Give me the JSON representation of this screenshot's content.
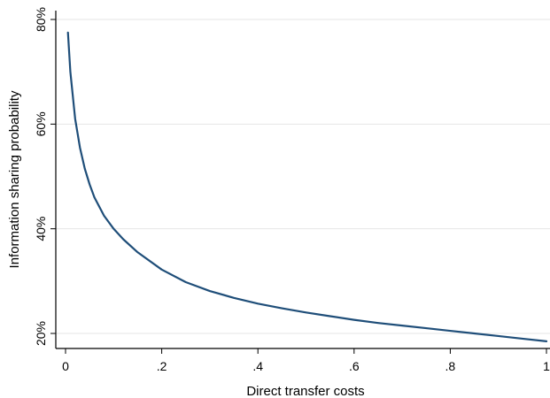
{
  "chart_data": {
    "type": "line",
    "title": "",
    "xlabel": "Direct transfer costs",
    "ylabel": "Information sharing probability",
    "xlim": [
      0,
      1
    ],
    "ylim": [
      0.17,
      0.81
    ],
    "grid": true,
    "x_ticks": [
      {
        "value": 0,
        "label": "0"
      },
      {
        "value": 0.2,
        "label": ".2"
      },
      {
        "value": 0.4,
        "label": ".4"
      },
      {
        "value": 0.6,
        "label": ".6"
      },
      {
        "value": 0.8,
        "label": ".8"
      },
      {
        "value": 1,
        "label": "1"
      }
    ],
    "y_ticks": [
      {
        "value": 0.2,
        "label": "20%"
      },
      {
        "value": 0.4,
        "label": "40%"
      },
      {
        "value": 0.6,
        "label": "60%"
      },
      {
        "value": 0.8,
        "label": "80%"
      }
    ],
    "series": [
      {
        "color": "#1f4e79",
        "x": [
          0.005,
          0.01,
          0.02,
          0.03,
          0.04,
          0.05,
          0.06,
          0.08,
          0.1,
          0.12,
          0.15,
          0.2,
          0.25,
          0.3,
          0.35,
          0.4,
          0.45,
          0.5,
          0.55,
          0.6,
          0.65,
          0.7,
          0.75,
          0.8,
          0.85,
          0.9,
          0.95,
          1.0
        ],
        "y": [
          0.775,
          0.7,
          0.61,
          0.555,
          0.515,
          0.485,
          0.46,
          0.425,
          0.4,
          0.38,
          0.355,
          0.322,
          0.298,
          0.281,
          0.268,
          0.257,
          0.248,
          0.24,
          0.233,
          0.226,
          0.22,
          0.215,
          0.21,
          0.205,
          0.2,
          0.195,
          0.19,
          0.185
        ]
      }
    ]
  }
}
